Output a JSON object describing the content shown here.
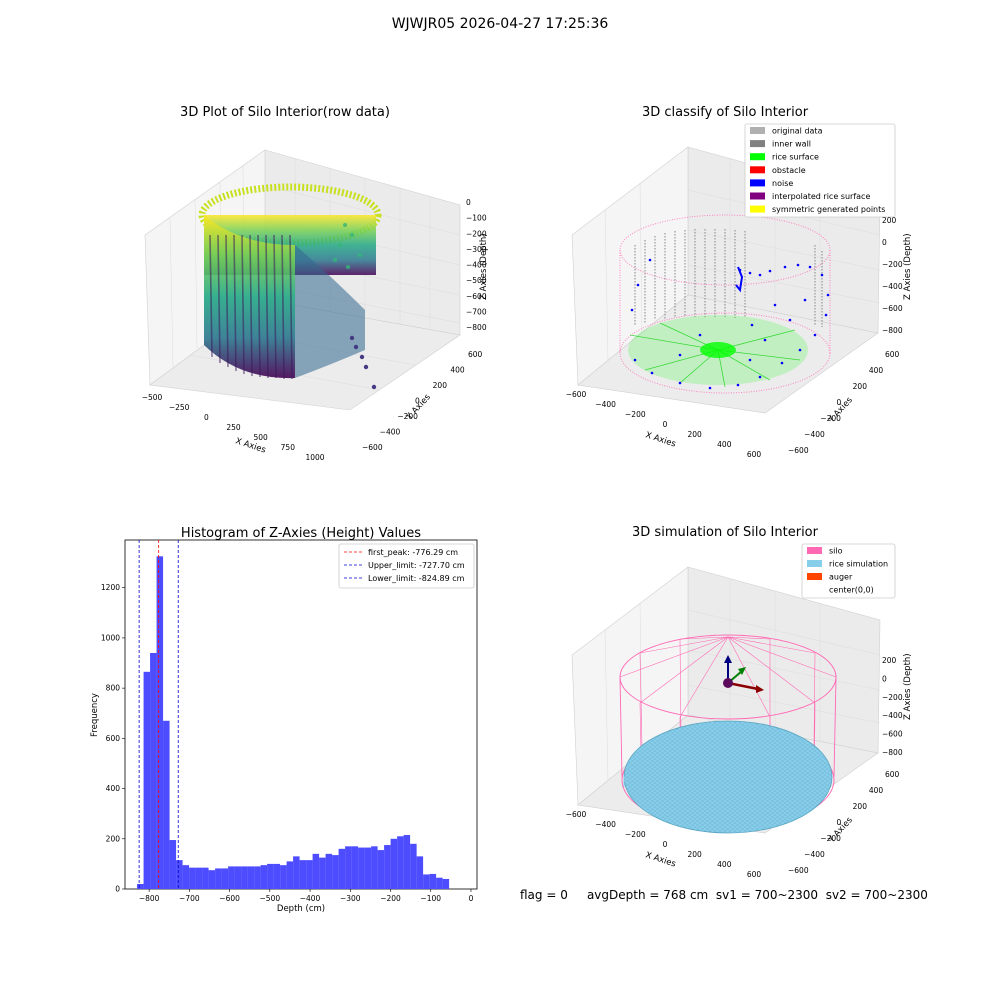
{
  "figure_title": "WJWJR05 2026-04-27 17:25:36",
  "status": {
    "flag": "flag = 0",
    "avg_depth": "avgDepth = 768 cm",
    "sv1": "sv1 = 700~2300",
    "sv2": "sv2 = 700~2300"
  },
  "colors": {
    "histogram_bar": "#4d4dff",
    "first_peak_line": "#ff0000",
    "limit_line": "#0000cc",
    "silo": "#ff69b4",
    "rice_simulation": "#87ceeb",
    "auger": "#ff4500",
    "noise": "#0000ff",
    "rice_surface": "#00ff00",
    "inner_wall": "#808080",
    "original_data": "#b0b0b0",
    "obstacle": "#ff0000",
    "interpolated_rice_surface": "#800080",
    "symmetric_generated_points": "#ffff00"
  },
  "chart_data": [
    {
      "type": "scatter",
      "title": "3D Plot of Silo Interior(row data)",
      "xlabel": "X Axies",
      "ylabel": "Y Axies",
      "zlabel": "Z Axies (Depth)",
      "x_ticks": [
        "−500",
        "−250",
        "0",
        "250",
        "500",
        "750",
        "1000"
      ],
      "y_ticks": [
        "−600",
        "−400",
        "−200",
        "0",
        "200",
        "400",
        "600"
      ],
      "z_ticks": [
        "0",
        "−100",
        "−200",
        "−300",
        "−400",
        "−500",
        "−600",
        "−700",
        "−800"
      ],
      "colormap": "viridis",
      "shape": "cylindrical wall of points"
    },
    {
      "type": "scatter",
      "title": "3D classify of Silo Interior",
      "xlabel": "X Axies",
      "ylabel": "Y Axies",
      "zlabel": "Z Axies (Depth)",
      "x_ticks": [
        "−600",
        "−400",
        "−200",
        "0",
        "200",
        "400",
        "600"
      ],
      "y_ticks": [
        "−600",
        "−400",
        "−200",
        "0",
        "200",
        "400",
        "600"
      ],
      "z_ticks": [
        "200",
        "0",
        "−200",
        "−400",
        "−600",
        "−800"
      ],
      "legend": [
        "original data",
        "inner wall",
        "rice surface",
        "obstacle",
        "noise",
        "interpolated rice surface",
        "symmetric generated points"
      ],
      "legend_colors": [
        "#b0b0b0",
        "#808080",
        "#00ff00",
        "#ff0000",
        "#0000ff",
        "#800080",
        "#ffff00"
      ],
      "legend_position": "top-right"
    },
    {
      "type": "bar",
      "title": "Histogram of Z-Axies (Height) Values",
      "xlabel": "Depth (cm)",
      "ylabel": "Frequency",
      "xlim": [
        -860,
        15
      ],
      "ylim": [
        0,
        1390
      ],
      "x_ticks": [
        -800,
        -700,
        -600,
        -500,
        -400,
        -300,
        -200,
        -100,
        0
      ],
      "y_ticks": [
        0,
        200,
        400,
        600,
        800,
        1000,
        1200
      ],
      "bin_edges_start": -830,
      "bin_width": 16.16,
      "values": [
        20,
        865,
        940,
        1325,
        670,
        195,
        115,
        95,
        85,
        85,
        85,
        75,
        82,
        82,
        90,
        90,
        90,
        90,
        90,
        95,
        100,
        100,
        95,
        110,
        130,
        115,
        115,
        140,
        125,
        140,
        135,
        160,
        170,
        170,
        165,
        165,
        170,
        155,
        175,
        200,
        210,
        215,
        180,
        130,
        58,
        60,
        45,
        40
      ],
      "vlines": [
        {
          "name": "first_peak",
          "value": -776.29,
          "label": "first_peak: -776.29 cm",
          "color": "#ff0000"
        },
        {
          "name": "Upper_limit",
          "value": -727.7,
          "label": "Upper_limit: -727.70 cm",
          "color": "#0000cc"
        },
        {
          "name": "Lower_limit",
          "value": -824.89,
          "label": "Lower_limit: -824.89 cm",
          "color": "#0000cc"
        }
      ],
      "legend_position": "top-right"
    },
    {
      "type": "scatter",
      "title": "3D simulation of Silo Interior",
      "xlabel": "X Axies",
      "ylabel": "Y Axies",
      "zlabel": "Z Axies (Depth)",
      "x_ticks": [
        "−600",
        "−400",
        "−200",
        "0",
        "200",
        "400",
        "600"
      ],
      "y_ticks": [
        "−600",
        "−400",
        "−200",
        "0",
        "200",
        "400",
        "600"
      ],
      "z_ticks": [
        "200",
        "0",
        "−200",
        "−400",
        "−600",
        "−800"
      ],
      "legend": [
        "silo",
        "rice simulation",
        "auger",
        "center(0,0)"
      ],
      "legend_colors": [
        "#ff69b4",
        "#87ceeb",
        "#ff4500",
        "#ffffff"
      ],
      "legend_position": "top-right"
    }
  ]
}
